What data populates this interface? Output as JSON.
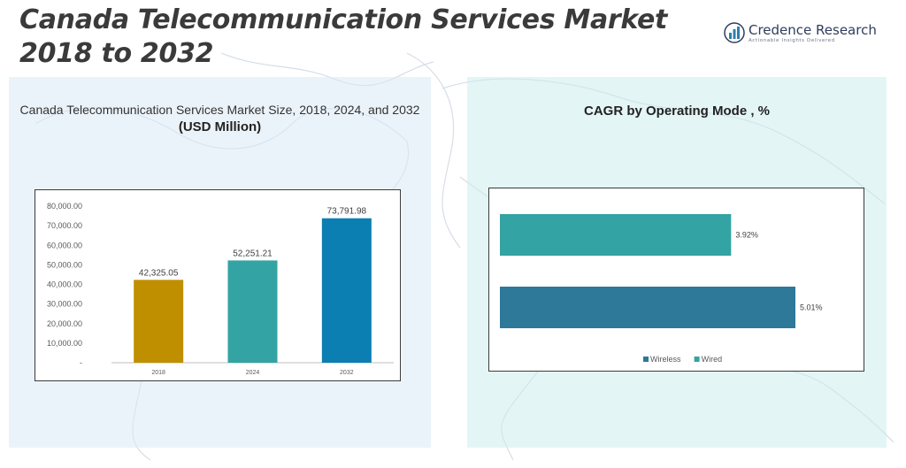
{
  "page": {
    "title": "Canada Telecommunication Services Market 2018 to 2032",
    "logo": {
      "name": "Credence Research",
      "tagline": "Actionable Insights Delivered"
    }
  },
  "left_panel": {
    "subtitle": "Canada Telecommunication Services Market Size, 2018, 2024, and 2032",
    "unit": "(USD Million)"
  },
  "right_panel": {
    "title": "CAGR by Operating Mode , %"
  },
  "chart_data": [
    {
      "type": "bar",
      "title": "Canada Telecommunication Services Market Size, 2018, 2024, and 2032",
      "ylabel": "(USD Million)",
      "categories": [
        "2018",
        "2024",
        "2032"
      ],
      "values": [
        42325.05,
        52251.21,
        73791.98
      ],
      "value_labels": [
        "42,325.05",
        "52,251.21",
        "73,791.98"
      ],
      "colors": [
        "#bf8f00",
        "#33a3a3",
        "#0b7fb2"
      ],
      "ylim": [
        0,
        80000
      ],
      "yticks": [
        0,
        10000,
        20000,
        30000,
        40000,
        50000,
        60000,
        70000,
        80000
      ],
      "ytick_labels": [
        "-",
        "10,000.00",
        "20,000.00",
        "30,000.00",
        "40,000.00",
        "50,000.00",
        "60,000.00",
        "70,000.00",
        "80,000.00"
      ],
      "grid": false
    },
    {
      "type": "bar",
      "orientation": "horizontal",
      "title": "CAGR by Operating Mode , %",
      "categories": [
        "Wired",
        "Wireless"
      ],
      "values": [
        3.92,
        5.01
      ],
      "value_labels": [
        "3.92%",
        "5.01%"
      ],
      "colors": [
        "#33a3a3",
        "#2e7899"
      ],
      "legend": {
        "position": "bottom",
        "entries": [
          {
            "name": "Wireless",
            "color": "#2e7899"
          },
          {
            "name": "Wired",
            "color": "#33a3a3"
          }
        ]
      },
      "grid": false
    }
  ]
}
